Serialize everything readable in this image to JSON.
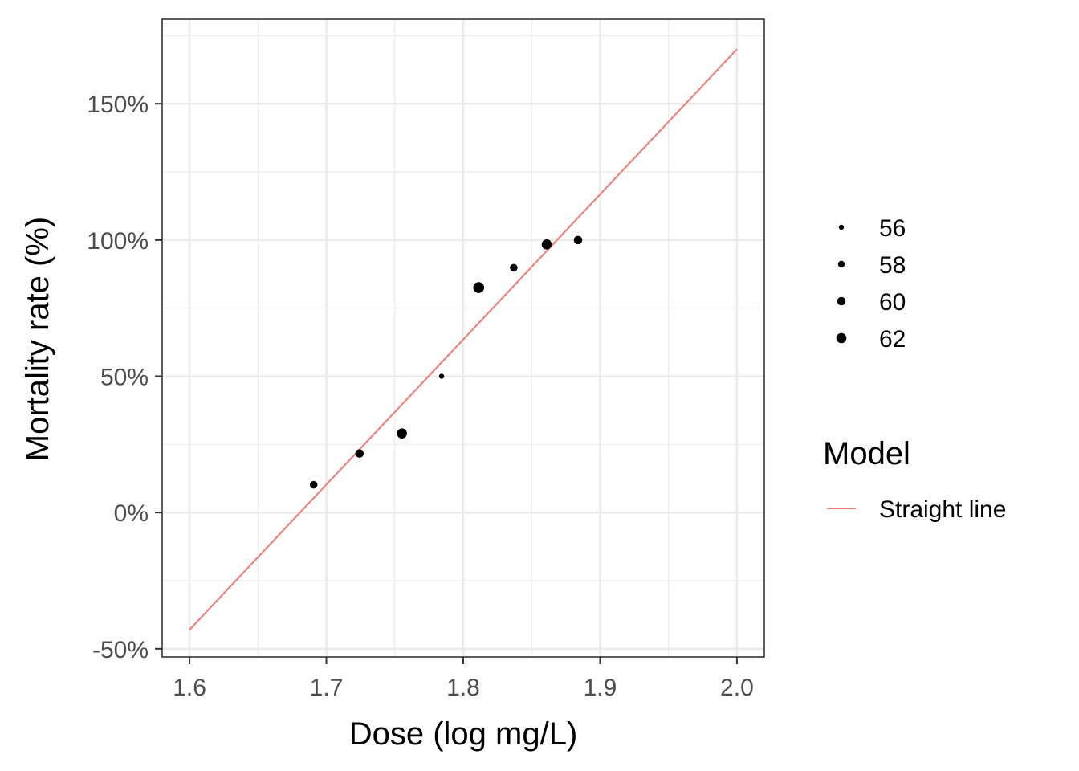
{
  "chart_data": {
    "type": "scatter",
    "xlabel": "Dose (log mg/L)",
    "ylabel": "Mortality rate (%)",
    "xlim": [
      1.58,
      2.02
    ],
    "ylim": [
      -0.53,
      1.81
    ],
    "x_ticks": [
      1.6,
      1.7,
      1.8,
      1.9,
      2.0
    ],
    "x_tick_labels": [
      "1.6",
      "1.7",
      "1.8",
      "1.9",
      "2.0"
    ],
    "y_ticks": [
      -0.5,
      0,
      0.5,
      1.0,
      1.5
    ],
    "y_tick_labels": [
      "-50%",
      "0%",
      "50%",
      "100%",
      "150%"
    ],
    "grid": true,
    "points": [
      {
        "x": 1.6907,
        "y": 0.1017,
        "size": 59
      },
      {
        "x": 1.7242,
        "y": 0.2167,
        "size": 60
      },
      {
        "x": 1.7552,
        "y": 0.2903,
        "size": 62
      },
      {
        "x": 1.7842,
        "y": 0.5,
        "size": 56
      },
      {
        "x": 1.8113,
        "y": 0.8254,
        "size": 63
      },
      {
        "x": 1.8369,
        "y": 0.8983,
        "size": 59
      },
      {
        "x": 1.861,
        "y": 0.9839,
        "size": 62
      },
      {
        "x": 1.8839,
        "y": 1.0,
        "size": 60
      }
    ],
    "size_legend": {
      "entries": [
        {
          "label": "56",
          "value": 56
        },
        {
          "label": "58",
          "value": 58
        },
        {
          "label": "60",
          "value": 60
        },
        {
          "label": "62",
          "value": 62
        }
      ]
    },
    "line_series": {
      "name": "Straight line",
      "color": "#F8766D",
      "x": [
        1.6,
        2.0
      ],
      "y": [
        -0.43,
        1.7
      ]
    },
    "color_legend_title": "Model",
    "point_color": "#000000",
    "grid_color": "#EBEBEB",
    "panel_border_color": "#333333",
    "legend_placement": "right"
  }
}
